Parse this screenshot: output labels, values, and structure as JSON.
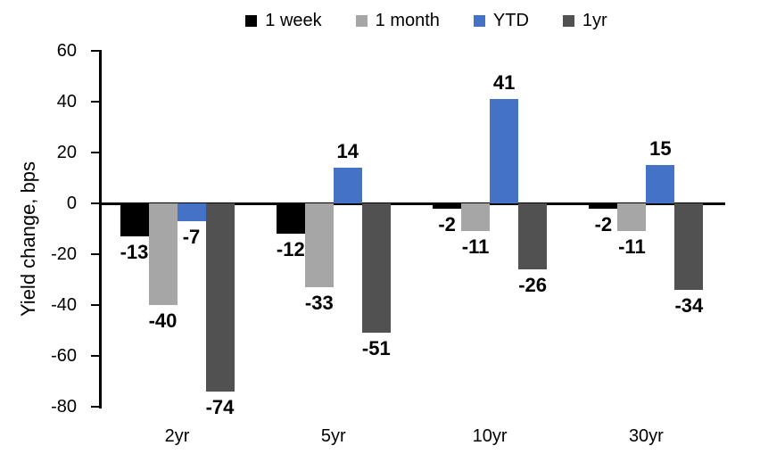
{
  "chart_data": {
    "type": "bar",
    "title": "",
    "ylabel": "Yield change, bps",
    "xlabel": "",
    "categories": [
      "2yr",
      "5yr",
      "10yr",
      "30yr"
    ],
    "series": [
      {
        "name": "1 week",
        "color": "#000000",
        "values": [
          -13,
          -12,
          -2,
          -2
        ]
      },
      {
        "name": "1 month",
        "color": "#A6A6A6",
        "values": [
          -40,
          -33,
          -11,
          -11
        ]
      },
      {
        "name": "YTD",
        "color": "#4472C4",
        "values": [
          -7,
          14,
          41,
          15
        ]
      },
      {
        "name": "1yr",
        "color": "#515151",
        "values": [
          -74,
          -51,
          -26,
          -34
        ]
      }
    ],
    "ylim": [
      -80,
      60
    ],
    "ytick_step": 20,
    "yticks": [
      60,
      40,
      20,
      0,
      -20,
      -40,
      -60,
      -80
    ],
    "data_labels": true,
    "grid": false,
    "legend_position": "top",
    "axis_color": "#000000",
    "background_color": "#FFFFFF"
  }
}
